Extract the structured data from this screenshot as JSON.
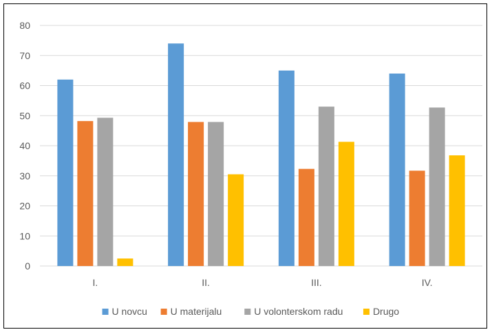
{
  "chart_data": {
    "type": "bar",
    "title": "",
    "xlabel": "",
    "ylabel": "",
    "categories": [
      "I.",
      "II.",
      "III.",
      "IV."
    ],
    "ylim": [
      0,
      80
    ],
    "y_ticks": [
      0,
      10,
      20,
      30,
      40,
      50,
      60,
      70,
      80
    ],
    "grid": true,
    "legend_position": "bottom",
    "series": [
      {
        "name": "U novcu",
        "color": "#5B9BD5",
        "values": [
          62,
          74,
          65,
          64
        ]
      },
      {
        "name": "U materijalu",
        "color": "#ED7D31",
        "values": [
          48.2,
          47.9,
          32.3,
          31.7
        ]
      },
      {
        "name": "U volonterskom radu",
        "color": "#A5A5A5",
        "values": [
          49.3,
          47.9,
          53,
          52.7
        ]
      },
      {
        "name": "Drugo",
        "color": "#FFC000",
        "values": [
          2.5,
          30.5,
          41.3,
          36.8
        ]
      }
    ]
  }
}
